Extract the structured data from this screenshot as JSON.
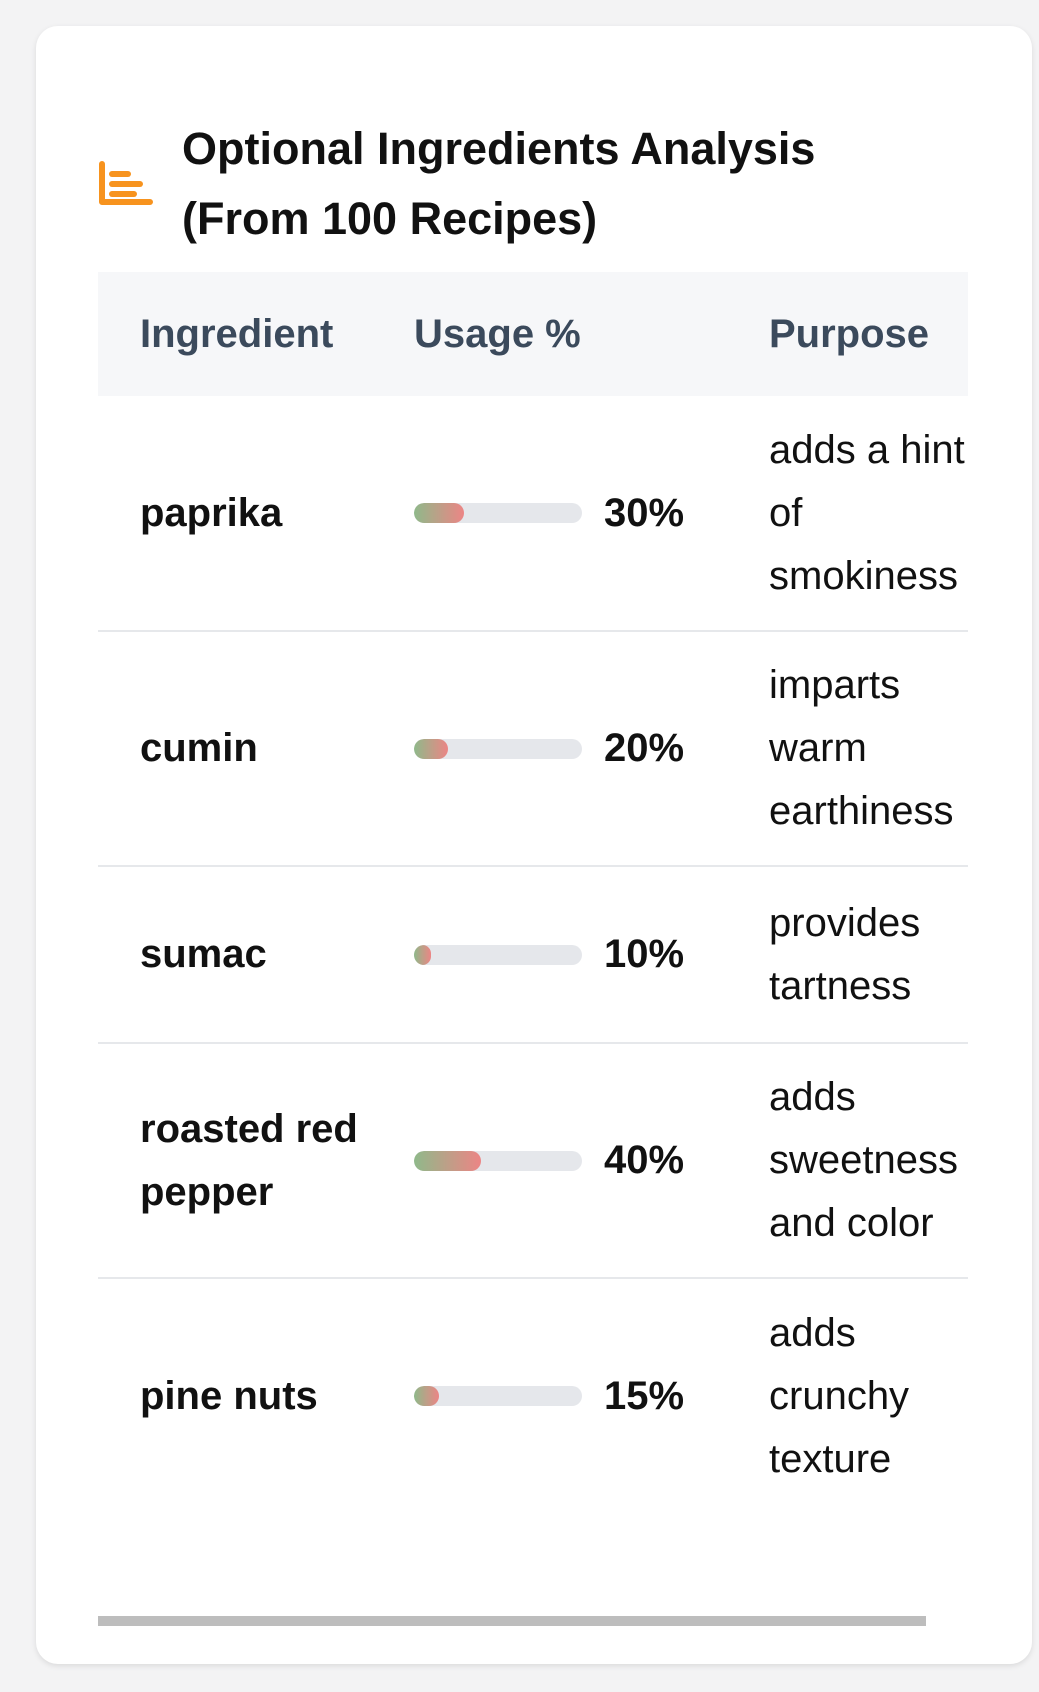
{
  "card": {
    "title": "Optional Ingredients Analysis (From 100 Recipes)",
    "icon": "bar-chart-icon",
    "icon_color": "#f7931e"
  },
  "table": {
    "headers": {
      "ingredient": "Ingredient",
      "usage": "Usage %",
      "purpose": "Purpose"
    },
    "rows": [
      {
        "ingredient": "paprika",
        "usage": 30,
        "usage_label": "30%",
        "purpose": "adds a hint of smokiness"
      },
      {
        "ingredient": "cumin",
        "usage": 20,
        "usage_label": "20%",
        "purpose": "imparts warm earthiness"
      },
      {
        "ingredient": "sumac",
        "usage": 10,
        "usage_label": "10%",
        "purpose": "provides tartness"
      },
      {
        "ingredient": "roasted red pepper",
        "usage": 40,
        "usage_label": "40%",
        "purpose": "adds sweetness and color"
      },
      {
        "ingredient": "pine nuts",
        "usage": 15,
        "usage_label": "15%",
        "purpose": "adds crunchy texture"
      }
    ]
  },
  "colors": {
    "bar_gradient_start": "#8fb98a",
    "bar_gradient_end": "#ec8585",
    "bar_track": "#e5e7eb"
  }
}
